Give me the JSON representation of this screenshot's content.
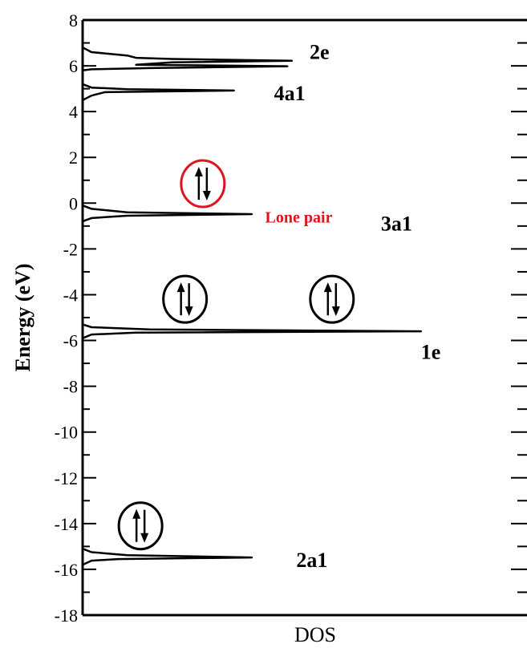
{
  "chart_data": {
    "type": "line",
    "title": "",
    "xlabel": "DOS",
    "ylabel": "Energy (eV)",
    "ylim": [
      -18,
      8
    ],
    "yticks": [
      8,
      6,
      4,
      2,
      0,
      -2,
      -4,
      -6,
      -8,
      -10,
      -12,
      -14,
      -16,
      -18
    ],
    "ytick_labels": [
      "8",
      "6",
      "4",
      "2",
      "0",
      "-2",
      "-4",
      "-6",
      "-8",
      "-10",
      "-12",
      "-14",
      "-16",
      "-18"
    ],
    "xlim": [
      0,
      1
    ],
    "grid": false,
    "series": [
      {
        "points": [
          [
            0.0,
            6.8
          ],
          [
            0.02,
            6.6
          ],
          [
            0.1,
            6.45
          ],
          [
            0.12,
            6.35
          ],
          [
            0.2,
            6.3
          ],
          [
            0.47,
            6.22
          ],
          [
            0.2,
            6.15
          ],
          [
            0.12,
            6.05
          ],
          [
            0.46,
            5.98
          ],
          [
            0.15,
            5.9
          ],
          [
            0.02,
            5.85
          ],
          [
            0.0,
            5.8
          ],
          [
            0.0,
            5.2
          ],
          [
            0.02,
            5.05
          ],
          [
            0.1,
            4.98
          ],
          [
            0.34,
            4.92
          ],
          [
            0.05,
            4.85
          ],
          [
            0.02,
            4.7
          ],
          [
            0.0,
            4.5
          ],
          [
            0.0,
            -0.1
          ],
          [
            0.02,
            -0.25
          ],
          [
            0.1,
            -0.4
          ],
          [
            0.38,
            -0.48
          ],
          [
            0.1,
            -0.55
          ],
          [
            0.02,
            -0.65
          ],
          [
            0.0,
            -0.8
          ],
          [
            0.0,
            -5.3
          ],
          [
            0.02,
            -5.42
          ],
          [
            0.15,
            -5.52
          ],
          [
            0.76,
            -5.6
          ],
          [
            0.12,
            -5.66
          ],
          [
            0.02,
            -5.74
          ],
          [
            0.0,
            -5.9
          ],
          [
            0.0,
            -15.1
          ],
          [
            0.02,
            -15.25
          ],
          [
            0.1,
            -15.38
          ],
          [
            0.38,
            -15.48
          ],
          [
            0.08,
            -15.55
          ],
          [
            0.02,
            -15.62
          ],
          [
            0.0,
            -15.8
          ]
        ]
      }
    ],
    "annotations": [
      {
        "text": "2e",
        "x": 0.51,
        "y": 6.3
      },
      {
        "text": "4a1",
        "x": 0.43,
        "y": 4.5
      },
      {
        "text": "3a1",
        "x": 0.67,
        "y": -1.2
      },
      {
        "text": "1e",
        "x": 0.76,
        "y": -6.8
      },
      {
        "text": "2a1",
        "x": 0.48,
        "y": -15.9
      }
    ],
    "lone_pair_label": {
      "text": "Lone pair",
      "x": 0.41,
      "y": -0.85
    },
    "electron_pairs": [
      {
        "x": 0.27,
        "y": 0.85,
        "color": "#e0141e"
      },
      {
        "x": 0.23,
        "y": -4.2,
        "color": "#000000"
      },
      {
        "x": 0.56,
        "y": -4.2,
        "color": "#000000"
      },
      {
        "x": 0.13,
        "y": -14.1,
        "color": "#000000"
      }
    ]
  }
}
